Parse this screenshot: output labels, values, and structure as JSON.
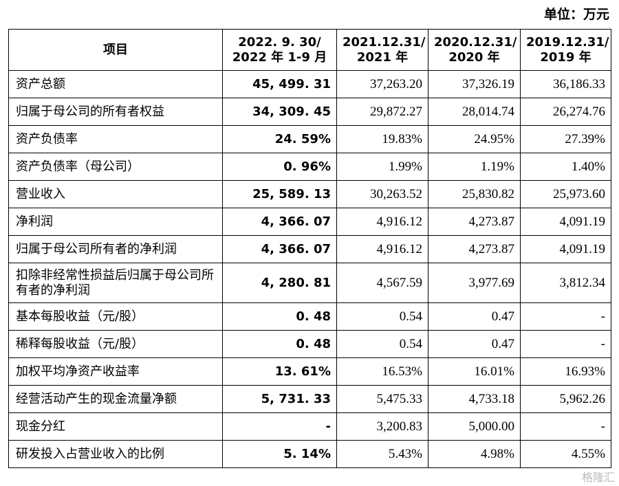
{
  "unit": "单位：万元",
  "table": {
    "header": [
      [
        "项目"
      ],
      [
        "2022. 9. 30/",
        "2022 年 1-9 月"
      ],
      [
        "2021.12.31/",
        "2021 年"
      ],
      [
        "2020.12.31/",
        "2020 年"
      ],
      [
        "2019.12.31/",
        "2019 年"
      ]
    ],
    "rows": [
      [
        "资产总额",
        "45, 499. 31",
        "37,263.20",
        "37,326.19",
        "36,186.33"
      ],
      [
        "归属于母公司的所有者权益",
        "34, 309. 45",
        "29,872.27",
        "28,014.74",
        "26,274.76"
      ],
      [
        "资产负债率",
        "24. 59%",
        "19.83%",
        "24.95%",
        "27.39%"
      ],
      [
        "资产负债率（母公司）",
        "0. 96%",
        "1.99%",
        "1.19%",
        "1.40%"
      ],
      [
        "营业收入",
        "25, 589. 13",
        "30,263.52",
        "25,830.82",
        "25,973.60"
      ],
      [
        "净利润",
        "4, 366. 07",
        "4,916.12",
        "4,273.87",
        "4,091.19"
      ],
      [
        "归属于母公司所有者的净利润",
        "4, 366. 07",
        "4,916.12",
        "4,273.87",
        "4,091.19"
      ],
      [
        "扣除非经常性损益后归属于母公司所有者的净利润",
        "4, 280. 81",
        "4,567.59",
        "3,977.69",
        "3,812.34"
      ],
      [
        "基本每股收益（元/股）",
        "0. 48",
        "0.54",
        "0.47",
        "-"
      ],
      [
        "稀释每股收益（元/股）",
        "0. 48",
        "0.54",
        "0.47",
        "-"
      ],
      [
        "加权平均净资产收益率",
        "13. 61%",
        "16.53%",
        "16.01%",
        "16.93%"
      ],
      [
        "经营活动产生的现金流量净额",
        "5, 731. 33",
        "5,475.33",
        "4,733.18",
        "5,962.26"
      ],
      [
        "现金分红",
        "-",
        "3,200.83",
        "5,000.00",
        "-"
      ],
      [
        "研发投入占营业收入的比例",
        "5. 14%",
        "5.43%",
        "4.98%",
        "4.55%"
      ]
    ]
  },
  "watermark": "格隆汇"
}
